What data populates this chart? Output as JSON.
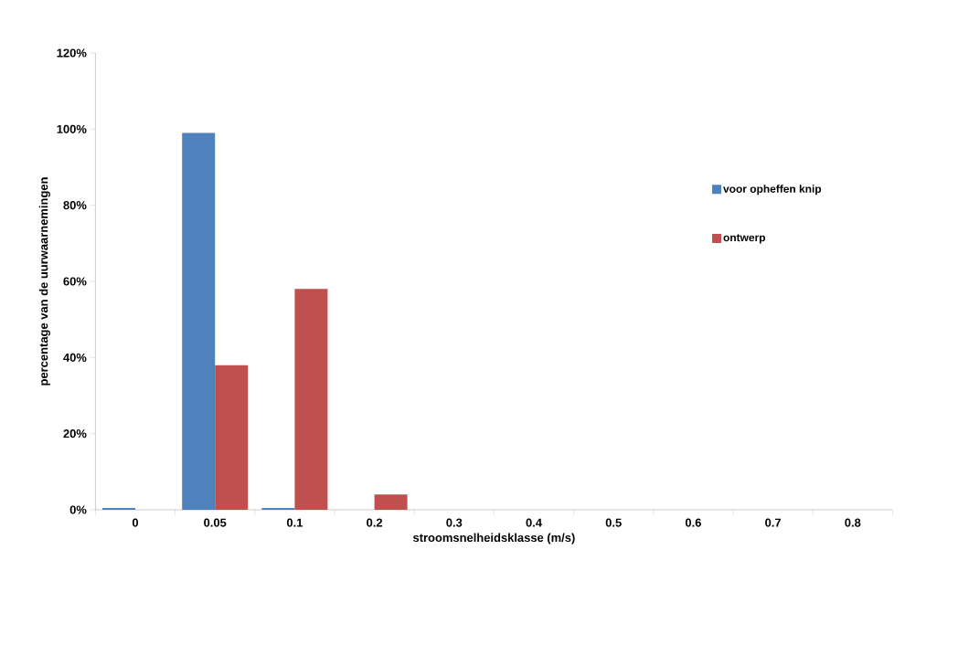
{
  "chart_data": {
    "type": "bar",
    "xlabel": "stroomsnelheidsklasse (m/s)",
    "ylabel": "percentage van de uurwaarnemingen",
    "categories": [
      "0",
      "0.05",
      "0.1",
      "0.2",
      "0.3",
      "0.4",
      "0.5",
      "0.6",
      "0.7",
      "0.8"
    ],
    "series": [
      {
        "name": "voor opheffen knip",
        "color": "#4f81bd",
        "values": [
          0.5,
          99,
          0.5,
          0,
          0,
          0,
          0,
          0,
          0,
          0
        ]
      },
      {
        "name": "ontwerp",
        "color": "#c0504d",
        "values": [
          0,
          38,
          58,
          4,
          0,
          0,
          0,
          0,
          0,
          0
        ]
      }
    ],
    "ylim": [
      0,
      120
    ],
    "yticks": [
      {
        "value": 0,
        "label": "0%"
      },
      {
        "value": 20,
        "label": "20%"
      },
      {
        "value": 40,
        "label": "40%"
      },
      {
        "value": 60,
        "label": "60%"
      },
      {
        "value": 80,
        "label": "80%"
      },
      {
        "value": 100,
        "label": "100%"
      },
      {
        "value": 120,
        "label": "120%"
      }
    ],
    "legend": "right",
    "grid": false
  }
}
